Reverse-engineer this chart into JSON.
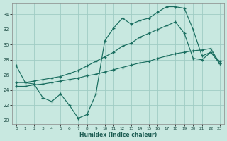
{
  "xlabel": "Humidex (Indice chaleur)",
  "xlim": [
    -0.5,
    23.5
  ],
  "ylim": [
    19.5,
    35.5
  ],
  "yticks": [
    20,
    22,
    24,
    26,
    28,
    30,
    32,
    34
  ],
  "xticks": [
    0,
    1,
    2,
    3,
    4,
    5,
    6,
    7,
    8,
    9,
    10,
    11,
    12,
    13,
    14,
    15,
    16,
    17,
    18,
    19,
    20,
    21,
    22,
    23
  ],
  "bg_color": "#c8e8e0",
  "grid_color": "#a0ccc4",
  "line_color": "#1a6e60",
  "line1_y": [
    27.2,
    25.0,
    24.8,
    23.0,
    22.5,
    23.5,
    22.0,
    20.3,
    20.8,
    23.5,
    30.5,
    32.2,
    33.5,
    32.7,
    33.2,
    33.5,
    34.3,
    35.0,
    35.0,
    34.8,
    32.0,
    28.5,
    29.0,
    27.5
  ],
  "line2_y": [
    25.0,
    25.0,
    25.2,
    25.4,
    25.6,
    25.8,
    26.2,
    26.6,
    27.2,
    27.8,
    28.4,
    29.0,
    29.8,
    30.2,
    31.0,
    31.5,
    32.0,
    32.5,
    33.0,
    31.5,
    28.2,
    28.0,
    29.0,
    27.8
  ],
  "line3_y": [
    24.5,
    24.5,
    24.7,
    24.8,
    25.0,
    25.2,
    25.4,
    25.6,
    25.9,
    26.1,
    26.4,
    26.7,
    27.0,
    27.3,
    27.6,
    27.8,
    28.2,
    28.5,
    28.8,
    29.0,
    29.2,
    29.3,
    29.5,
    27.5
  ]
}
